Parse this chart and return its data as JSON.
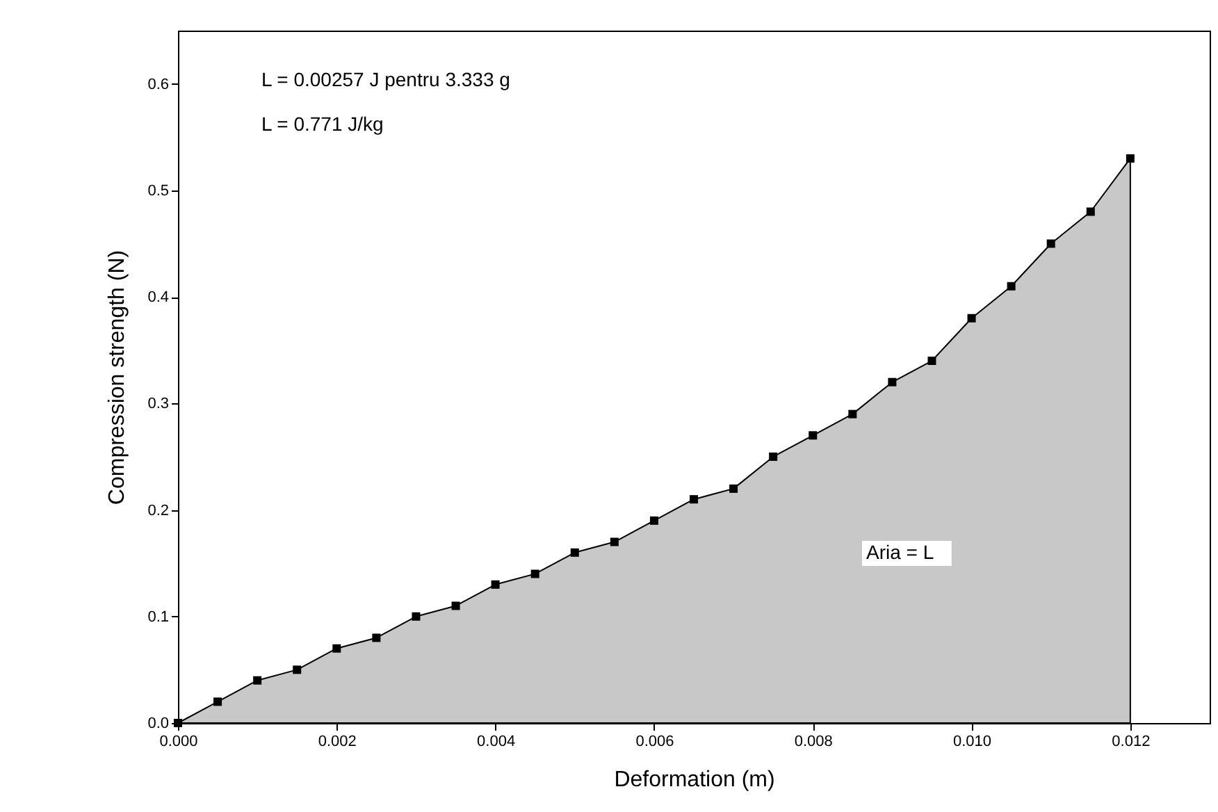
{
  "chart_data": {
    "type": "area",
    "xlabel": "Deformation (m)",
    "ylabel": "Compression strength (N)",
    "x": [
      0,
      0.0005,
      0.001,
      0.0015,
      0.002,
      0.0025,
      0.003,
      0.0035,
      0.004,
      0.0045,
      0.005,
      0.0055,
      0.006,
      0.0065,
      0.007,
      0.0075,
      0.008,
      0.0085,
      0.009,
      0.0095,
      0.01,
      0.0105,
      0.011,
      0.0115,
      0.012
    ],
    "series": [
      {
        "color": "#c8c8c8",
        "values": [
          0,
          0.02,
          0.04,
          0.05,
          0.07,
          0.08,
          0.1,
          0.11,
          0.13,
          0.14,
          0.16,
          0.17,
          0.19,
          0.21,
          0.22,
          0.25,
          0.27,
          0.29,
          0.32,
          0.34,
          0.38,
          0.41,
          0.45,
          0.48,
          0.53
        ]
      }
    ],
    "xlim": [
      0,
      0.013
    ],
    "xticks": [
      {
        "value": 0,
        "label": "0.000"
      },
      {
        "value": 0.002,
        "label": "0.002"
      },
      {
        "value": 0.004,
        "label": "0.004"
      },
      {
        "value": 0.006,
        "label": "0.006"
      },
      {
        "value": 0.008,
        "label": "0.008"
      },
      {
        "value": 0.01,
        "label": "0.010"
      },
      {
        "value": 0.012,
        "label": "0.012"
      }
    ],
    "ylim": [
      0,
      0.65
    ],
    "yticks": [
      {
        "value": 0,
        "label": "0.0"
      },
      0.1,
      0.2,
      0.3,
      0.4,
      0.5,
      0.6
    ],
    "annotations": [
      "L = 0.00257 J pentru 3.333 g",
      "L = 0.771 J/kg",
      "Aria = L"
    ],
    "marker": "square",
    "grid": false
  }
}
